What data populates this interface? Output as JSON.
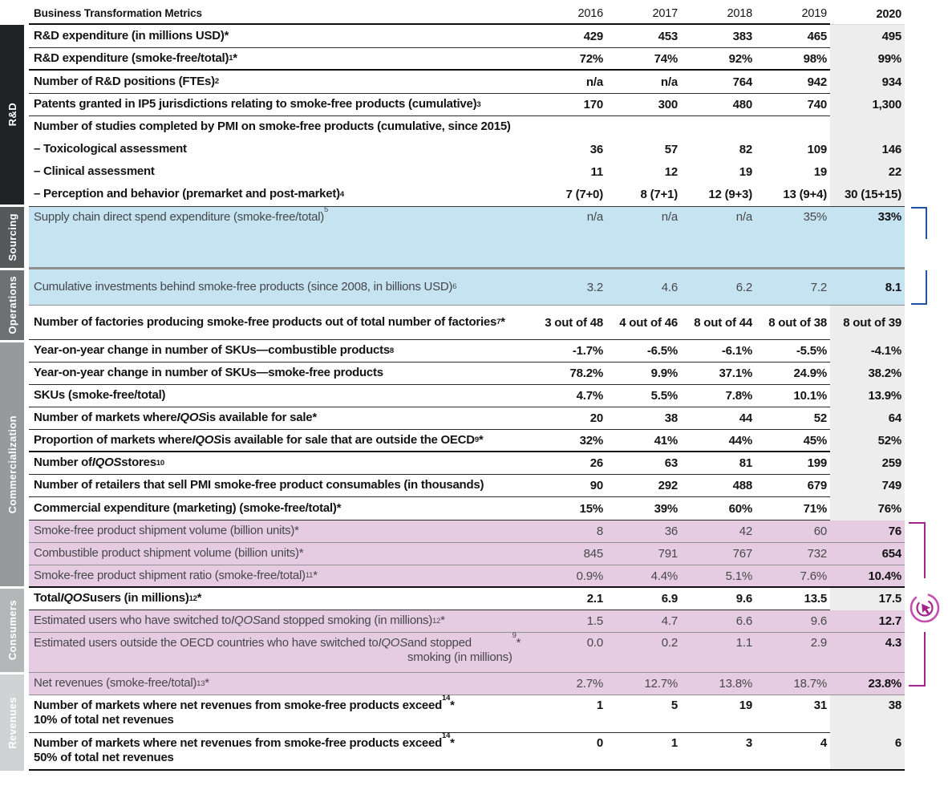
{
  "header": {
    "title": "Business Transformation Metrics",
    "years": [
      "2016",
      "2017",
      "2018",
      "2019",
      "2020"
    ]
  },
  "chart_data": {
    "type": "table",
    "columns": [
      "Metric",
      "2016",
      "2017",
      "2018",
      "2019",
      "2020"
    ],
    "sections": [
      {
        "name": "R&D",
        "rows": [
          {
            "label": "R&D expenditure (in millions USD)*",
            "values": [
              "429",
              "453",
              "383",
              "465",
              "495"
            ]
          },
          {
            "label": "R&D expenditure (smoke-free/total)<sup>1</sup> *",
            "values": [
              "72%",
              "74%",
              "92%",
              "98%",
              "99%"
            ]
          },
          {
            "label": "Number of R&D positions (FTEs)<sup>2</sup>",
            "values": [
              "n/a",
              "n/a",
              "764",
              "942",
              "934"
            ]
          },
          {
            "label": "Patents granted in IP5 jurisdictions relating to smoke-free products (cumulative)<sup>3</sup>",
            "values": [
              "170",
              "300",
              "480",
              "740",
              "1,300"
            ]
          },
          {
            "label": "Number of studies completed by PMI on smoke-free products (cumulative, since 2015)",
            "values": [
              "",
              "",
              "",
              "",
              ""
            ]
          },
          {
            "label": "– Toxicological assessment",
            "values": [
              "36",
              "57",
              "82",
              "109",
              "146"
            ]
          },
          {
            "label": "– Clinical assessment",
            "values": [
              "11",
              "12",
              "19",
              "19",
              "22"
            ]
          },
          {
            "label": "– Perception and behavior (premarket and post-market)<sup>4</sup>",
            "values": [
              "7 (7+0)",
              "8 (7+1)",
              "12 (9+3)",
              "13 (9+4)",
              "30 (15+15)"
            ]
          }
        ]
      },
      {
        "name": "Sourcing",
        "rows": [
          {
            "label": "Supply chain direct spend expenditure (smoke-free/total)<sup>5</sup>",
            "values": [
              "n/a",
              "n/a",
              "n/a",
              "35%",
              "33%"
            ],
            "highlight": "blue"
          }
        ]
      },
      {
        "name": "Operations",
        "rows": [
          {
            "label": "Cumulative investments behind smoke-free products (since 2008, in billions USD)<sup>6</sup>",
            "values": [
              "3.2",
              "4.6",
              "6.2",
              "7.2",
              "8.1"
            ],
            "highlight": "blue"
          },
          {
            "label": "Number of factories producing smoke-free products out of total number of factories<sup>7</sup> *",
            "values": [
              "3 out of 48",
              "4 out of 46",
              "8 out of 44",
              "8 out of 38",
              "8 out of 39"
            ]
          }
        ]
      },
      {
        "name": "Commercialization",
        "rows": [
          {
            "label": "Year-on-year change in number of SKUs—combustible products<sup>8</sup>",
            "values": [
              "-1.7%",
              "-6.5%",
              "-6.1%",
              "-5.5%",
              "-4.1%"
            ]
          },
          {
            "label": "Year-on-year change in number of SKUs—smoke-free products",
            "values": [
              "78.2%",
              "9.9%",
              "37.1%",
              "24.9%",
              "38.2%"
            ]
          },
          {
            "label": "SKUs (smoke-free/total)",
            "values": [
              "4.7%",
              "5.5%",
              "7.8%",
              "10.1%",
              "13.9%"
            ]
          },
          {
            "label": "Number of markets where <i>IQOS</i> is available for sale*",
            "values": [
              "20",
              "38",
              "44",
              "52",
              "64"
            ]
          },
          {
            "label": "Proportion of markets where <i>IQOS</i> is available for sale that are outside the OECD<sup>9</sup> *",
            "values": [
              "32%",
              "41%",
              "44%",
              "45%",
              "52%"
            ]
          },
          {
            "label": "Number of <i>IQOS</i> stores<sup>10</sup>",
            "values": [
              "26",
              "63",
              "81",
              "199",
              "259"
            ]
          },
          {
            "label": "Number of retailers that sell PMI smoke-free product consumables (in thousands)",
            "values": [
              "90",
              "292",
              "488",
              "679",
              "749"
            ]
          },
          {
            "label": "Commercial expenditure (marketing) (smoke-free/total)*",
            "values": [
              "15%",
              "39%",
              "60%",
              "71%",
              "76%"
            ]
          },
          {
            "label": "Smoke-free product shipment volume (billion units)*",
            "values": [
              "8",
              "36",
              "42",
              "60",
              "76"
            ],
            "highlight": "pink"
          },
          {
            "label": "Combustible product shipment volume (billion units)*",
            "values": [
              "845",
              "791",
              "767",
              "732",
              "654"
            ],
            "highlight": "pink"
          },
          {
            "label": "Smoke-free product shipment ratio (smoke-free/total)<sup>11</sup> *",
            "values": [
              "0.9%",
              "4.4%",
              "5.1%",
              "7.6%",
              "10.4%"
            ],
            "highlight": "pink"
          }
        ]
      },
      {
        "name": "Consumers",
        "rows": [
          {
            "label": "Total <i>IQOS</i> users (in millions)<sup>12</sup> *",
            "values": [
              "2.1",
              "6.9",
              "9.6",
              "13.5",
              "17.5"
            ]
          },
          {
            "label": "Estimated users who have switched to <i>IQOS</i> and stopped smoking (in millions)<sup>12</sup> *",
            "values": [
              "1.5",
              "4.7",
              "6.6",
              "9.6",
              "12.7"
            ],
            "highlight": "pink"
          },
          {
            "label": "Estimated users outside the OECD countries who have switched to <i>IQOS</i> and stopped<br>smoking (in millions)<sup>9</sup> *",
            "values": [
              "0.0",
              "0.2",
              "1.1",
              "2.9",
              "4.3"
            ],
            "highlight": "pink"
          }
        ]
      },
      {
        "name": "Revenues",
        "rows": [
          {
            "label": "Net revenues (smoke-free/total)<sup>13</sup> *",
            "values": [
              "2.7%",
              "12.7%",
              "13.8%",
              "18.7%",
              "23.8%"
            ],
            "highlight": "pink"
          },
          {
            "label": "Number of markets where net revenues from smoke-free products exceed<br>10% of total net revenues<sup>14</sup> *",
            "values": [
              "1",
              "5",
              "19",
              "31",
              "38"
            ]
          },
          {
            "label": "Number of markets where net revenues from smoke-free products exceed<br>50% of total net revenues<sup>14</sup> *",
            "values": [
              "0",
              "1",
              "3",
              "4",
              "6"
            ]
          }
        ]
      }
    ]
  },
  "icons": {
    "click_icon": "cursor-click-icon"
  },
  "colors": {
    "blue-row": "#c6e3f2",
    "pink-row": "#e6cce2",
    "col2020": "#ededed",
    "bracket-blue": "#2155a3",
    "bracket-magenta": "#a3268c",
    "rule": "#2a2a2a",
    "rule-strong": "#111111",
    "text": "#141414",
    "text-muted": "#46474a",
    "sb-rnd": "#202224",
    "sb-sourcing": "#57585a",
    "sb-operations": "#6f7073",
    "sb-commercialization": "#97999b",
    "sb-consumers": "#b4b6b8",
    "sb-revenues": "#d1d2d4"
  }
}
